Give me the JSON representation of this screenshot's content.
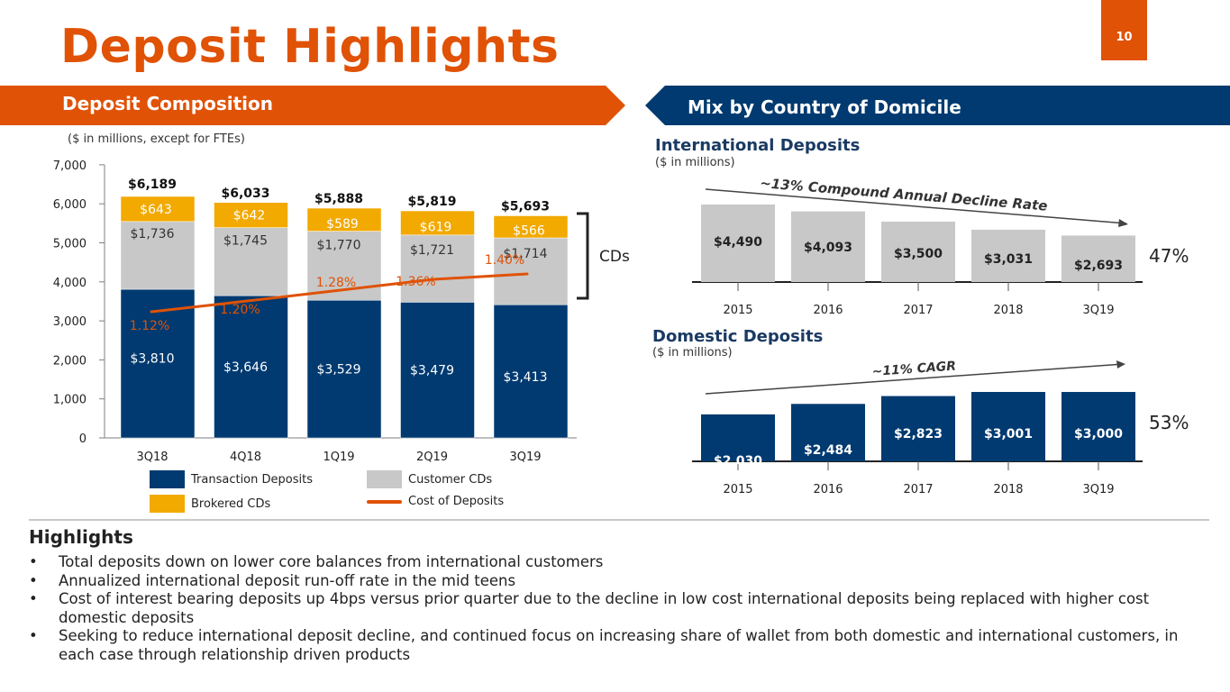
{
  "header": {
    "title": "Deposit Highlights",
    "page_number": "10"
  },
  "colors": {
    "accent_orange": "#e05206",
    "navy": "#003a70",
    "gray": "#c8c8c8",
    "gold": "#f2a900"
  },
  "left_panel": {
    "banner": "Deposit Composition",
    "note": "($ in millions, except for FTEs)",
    "cds_label": "CDs",
    "legend": {
      "transaction": "Transaction Deposits",
      "customer_cds": "Customer CDs",
      "brokered_cds": "Brokered CDs",
      "cost": "Cost of Deposits"
    }
  },
  "right_panel": {
    "banner": "Mix by Country of Domicile",
    "international": {
      "title": "International Deposits",
      "note": "($ in millions)",
      "trend_label": "~13% Compound Annual Decline Rate",
      "share": "47%"
    },
    "domestic": {
      "title": "Domestic Deposits",
      "note": "($ in millions)",
      "trend_label": "~11% CAGR",
      "share": "53%"
    }
  },
  "highlights": {
    "heading": "Highlights",
    "bullets": [
      "Total deposits down on lower core balances from international customers",
      "Annualized international deposit run-off rate in the mid teens",
      "Cost of interest bearing deposits up 4bps versus prior quarter due to the decline in low cost international deposits being replaced with higher cost domestic deposits",
      "Seeking to reduce international deposit decline, and continued focus on increasing share of wallet from both domestic and international customers, in each case through relationship driven products"
    ]
  },
  "chart_data": [
    {
      "type": "bar",
      "stacked": true,
      "categories": [
        "3Q18",
        "4Q18",
        "1Q19",
        "2Q19",
        "3Q19"
      ],
      "ylim": [
        0,
        7000
      ],
      "yticks": [
        "0",
        "1,000",
        "2,000",
        "3,000",
        "4,000",
        "5,000",
        "6,000",
        "7,000"
      ],
      "totals": [
        "$6,189",
        "$6,033",
        "$5,888",
        "$5,819",
        "$5,693"
      ],
      "series": [
        {
          "name": "Transaction Deposits",
          "color": "#003a70",
          "values": [
            3810,
            3646,
            3529,
            3479,
            3413
          ],
          "labels": [
            "$3,810",
            "$3,646",
            "$3,529",
            "$3,479",
            "$3,413"
          ]
        },
        {
          "name": "Customer CDs",
          "color": "#c8c8c8",
          "values": [
            1736,
            1745,
            1770,
            1721,
            1714
          ],
          "labels": [
            "$1,736",
            "$1,745",
            "$1,770",
            "$1,721",
            "$1,714"
          ]
        },
        {
          "name": "Brokered CDs",
          "color": "#f2a900",
          "values": [
            643,
            642,
            589,
            619,
            566
          ],
          "labels": [
            "$643",
            "$642",
            "$589",
            "$619",
            "$566"
          ]
        }
      ],
      "line_series": {
        "name": "Cost of Deposits",
        "color": "#e05206",
        "values": [
          1.12,
          1.2,
          1.28,
          1.36,
          1.4
        ],
        "labels": [
          "1.12%",
          "1.20%",
          "1.28%",
          "1.36%",
          "1.40%"
        ]
      }
    },
    {
      "type": "bar",
      "title": "International Deposits",
      "categories": [
        "2015",
        "2016",
        "2017",
        "2018",
        "3Q19"
      ],
      "values": [
        4490,
        4093,
        3500,
        3031,
        2693
      ],
      "labels": [
        "$4,490",
        "$4,093",
        "$3,500",
        "$3,031",
        "$2,693"
      ],
      "color": "#c8c8c8"
    },
    {
      "type": "bar",
      "title": "Domestic Deposits",
      "categories": [
        "2015",
        "2016",
        "2017",
        "2018",
        "3Q19"
      ],
      "values": [
        2030,
        2484,
        2823,
        3001,
        3000
      ],
      "labels": [
        "$2,030",
        "$2,484",
        "$2,823",
        "$3,001",
        "$3,000"
      ],
      "color": "#003a70"
    }
  ]
}
